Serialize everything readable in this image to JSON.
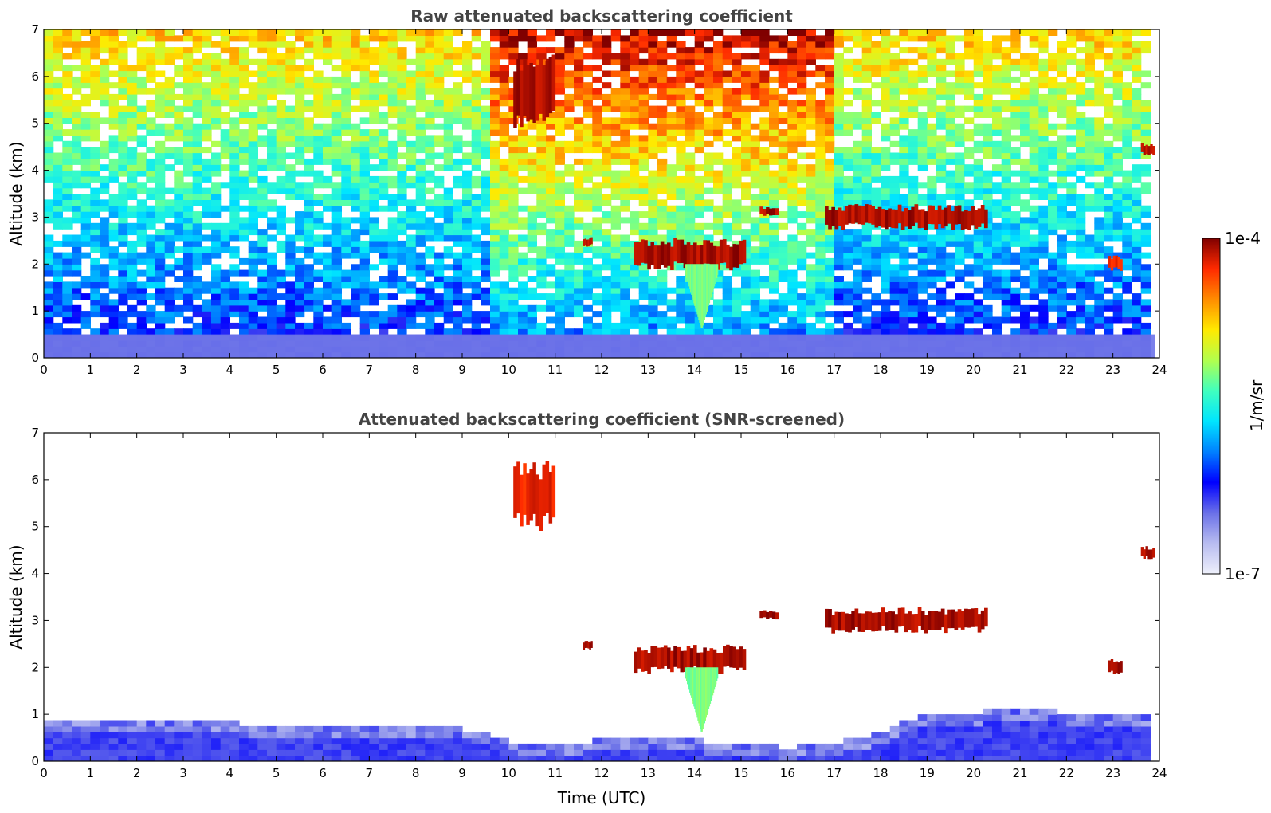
{
  "chart_data": [
    {
      "type": "heatmap",
      "title": "Raw attenuated backscattering coefficient",
      "xlabel": "",
      "ylabel": "Altitude (km)",
      "xlim": [
        0,
        24
      ],
      "ylim": [
        0,
        7
      ],
      "xticks": [
        "0",
        "1",
        "2",
        "3",
        "4",
        "5",
        "6",
        "7",
        "8",
        "9",
        "10",
        "11",
        "12",
        "13",
        "14",
        "15",
        "16",
        "17",
        "18",
        "19",
        "20",
        "21",
        "22",
        "23",
        "24"
      ],
      "yticks": [
        "0",
        "1",
        "2",
        "3",
        "4",
        "5",
        "6",
        "7"
      ],
      "background": "noisy",
      "features": [
        {
          "kind": "boundary_layer",
          "t0": 0,
          "t1": 23.9,
          "z0": 0,
          "z1": 0.5,
          "level": 0.18
        },
        {
          "kind": "cloud",
          "t0": 10.1,
          "t1": 11.0,
          "z0": 5.1,
          "z1": 6.3,
          "level": 1.0
        },
        {
          "kind": "cloud",
          "t0": 12.7,
          "t1": 15.1,
          "z0": 1.95,
          "z1": 2.45,
          "level": 1.0
        },
        {
          "kind": "cloud",
          "t0": 11.6,
          "t1": 11.8,
          "z0": 2.4,
          "z1": 2.55,
          "level": 1.0
        },
        {
          "kind": "cloud",
          "t0": 15.4,
          "t1": 15.8,
          "z0": 3.05,
          "z1": 3.2,
          "level": 1.0
        },
        {
          "kind": "cloud",
          "t0": 16.8,
          "t1": 20.3,
          "z0": 2.8,
          "z1": 3.2,
          "level": 1.0
        },
        {
          "kind": "cloud",
          "t0": 23.6,
          "t1": 23.9,
          "z0": 4.35,
          "z1": 4.55,
          "level": 1.0
        },
        {
          "kind": "cloud",
          "t0": 22.9,
          "t1": 23.2,
          "z0": 1.9,
          "z1": 2.15,
          "level": 0.95
        },
        {
          "kind": "virga",
          "t0": 13.8,
          "t1": 14.5,
          "z0": 0.6,
          "z1": 2.0,
          "level": 0.62
        }
      ]
    },
    {
      "type": "heatmap",
      "title": "Attenuated backscattering coefficient (SNR-screened)",
      "xlabel": "Time (UTC)",
      "ylabel": "Altitude (km)",
      "xlim": [
        0,
        24
      ],
      "ylim": [
        0,
        7
      ],
      "xticks": [
        "0",
        "1",
        "2",
        "3",
        "4",
        "5",
        "6",
        "7",
        "8",
        "9",
        "10",
        "11",
        "12",
        "13",
        "14",
        "15",
        "16",
        "17",
        "18",
        "19",
        "20",
        "21",
        "22",
        "23",
        "24"
      ],
      "yticks": [
        "0",
        "1",
        "2",
        "3",
        "4",
        "5",
        "6",
        "7"
      ],
      "background": "screened",
      "features": [
        {
          "kind": "boundary_layer_top",
          "points": [
            [
              0,
              0.9
            ],
            [
              3,
              0.85
            ],
            [
              6,
              0.75
            ],
            [
              8,
              0.8
            ],
            [
              9.6,
              0.6
            ],
            [
              10,
              0.4
            ],
            [
              11,
              0.35
            ],
            [
              12,
              0.45
            ],
            [
              13,
              0.5
            ],
            [
              14,
              0.45
            ],
            [
              15,
              0.35
            ],
            [
              16,
              0.3
            ],
            [
              17,
              0.35
            ],
            [
              18,
              0.65
            ],
            [
              19,
              1.0
            ],
            [
              20,
              1.05
            ],
            [
              21,
              1.1
            ],
            [
              22,
              1.05
            ],
            [
              23,
              1.0
            ],
            [
              23.9,
              1.0
            ]
          ]
        },
        {
          "kind": "cloud",
          "t0": 10.1,
          "t1": 11.0,
          "z0": 5.1,
          "z1": 6.2,
          "level": 0.95
        },
        {
          "kind": "cloud",
          "t0": 12.7,
          "t1": 15.1,
          "z0": 1.95,
          "z1": 2.4,
          "level": 1.0
        },
        {
          "kind": "cloud",
          "t0": 11.6,
          "t1": 11.8,
          "z0": 2.4,
          "z1": 2.55,
          "level": 1.0
        },
        {
          "kind": "cloud",
          "t0": 15.4,
          "t1": 15.8,
          "z0": 3.05,
          "z1": 3.2,
          "level": 1.0
        },
        {
          "kind": "cloud",
          "t0": 16.8,
          "t1": 20.3,
          "z0": 2.8,
          "z1": 3.2,
          "level": 1.0
        },
        {
          "kind": "cloud",
          "t0": 23.6,
          "t1": 23.9,
          "z0": 4.35,
          "z1": 4.55,
          "level": 1.0
        },
        {
          "kind": "cloud",
          "t0": 22.9,
          "t1": 23.2,
          "z0": 1.9,
          "z1": 2.15,
          "level": 1.0
        },
        {
          "kind": "virga",
          "t0": 13.8,
          "t1": 14.5,
          "z0": 0.6,
          "z1": 2.0,
          "level": 0.62
        }
      ]
    }
  ],
  "colorbar": {
    "label": "1/m/sr",
    "max_label": "1e-4",
    "min_label": "1e-7",
    "colormap": "jet",
    "colors": [
      "#eef0fb",
      "#b8bcf0",
      "#6a70e8",
      "#0000ff",
      "#0080ff",
      "#00e5ff",
      "#40ffbf",
      "#b2ff4d",
      "#ffea00",
      "#ff8c00",
      "#ff2a00",
      "#800000"
    ]
  }
}
